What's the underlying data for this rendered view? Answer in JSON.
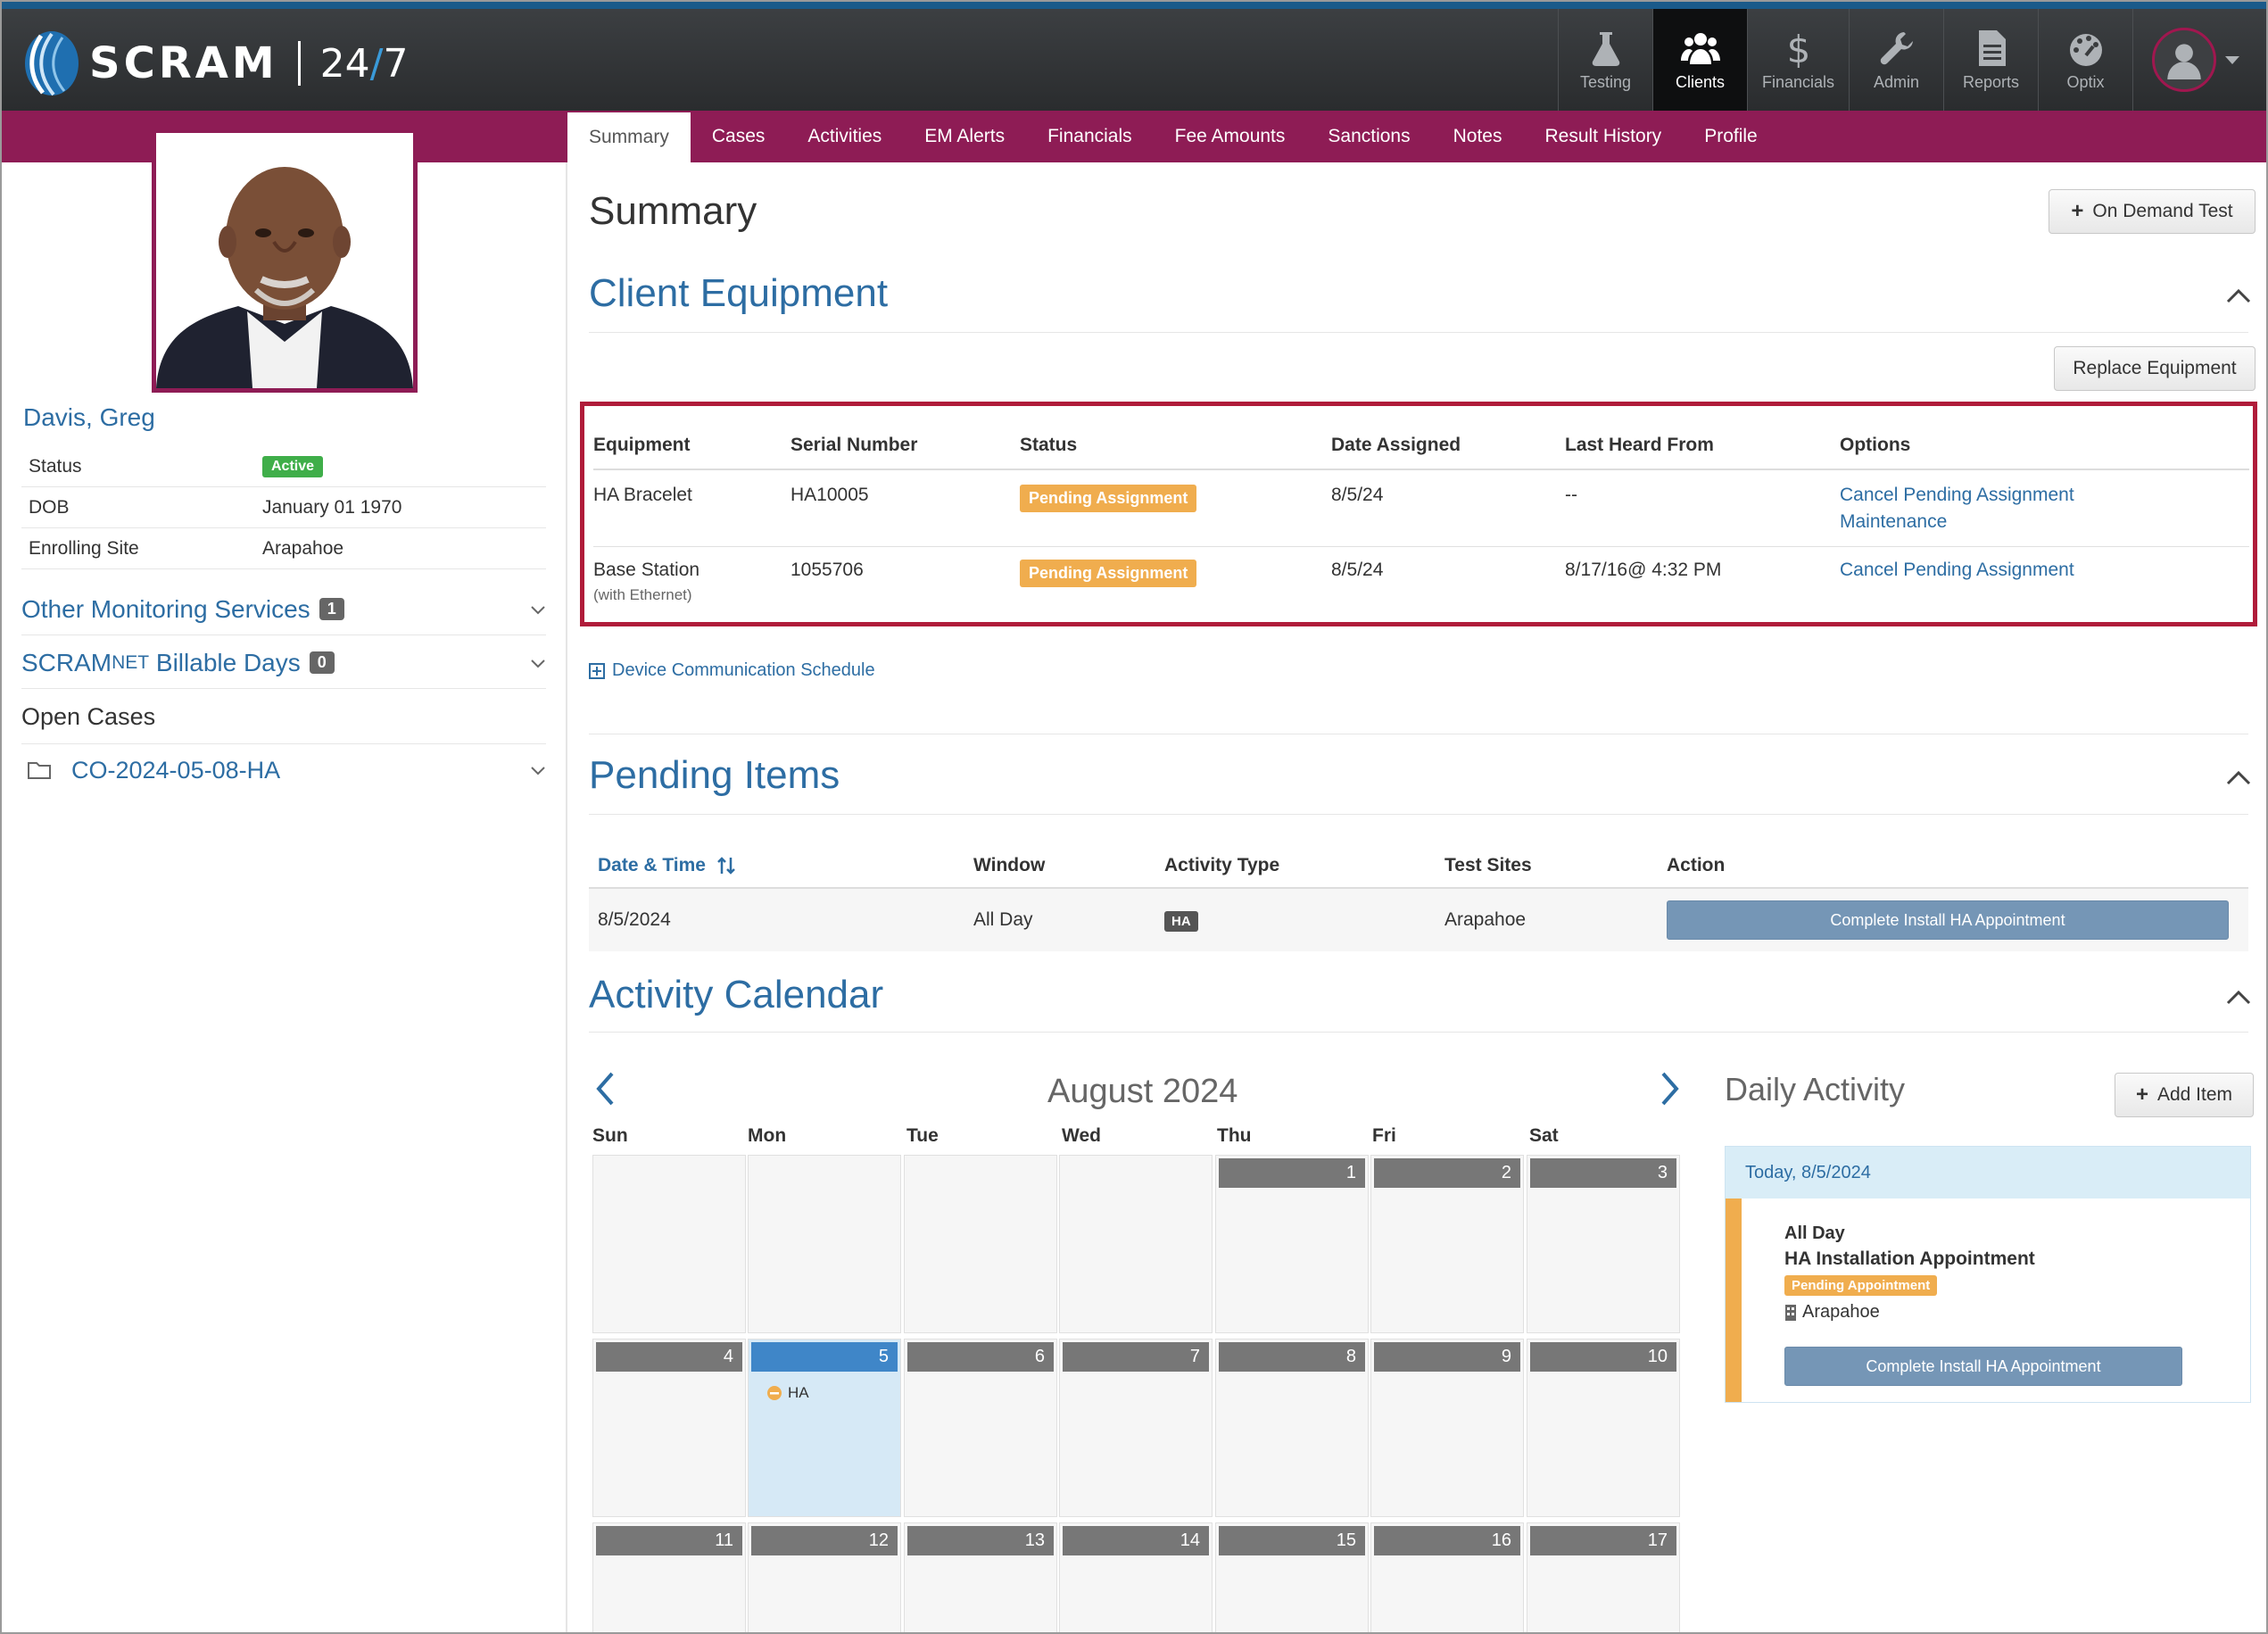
{
  "brand": {
    "name": "SCRAM",
    "suffix_a": "24",
    "suffix_slash": "/",
    "suffix_b": "7"
  },
  "topnav": [
    {
      "id": "testing",
      "label": "Testing",
      "icon": "flask-icon"
    },
    {
      "id": "clients",
      "label": "Clients",
      "icon": "users-icon",
      "active": true
    },
    {
      "id": "financials",
      "label": "Financials",
      "icon": "dollar-icon"
    },
    {
      "id": "admin",
      "label": "Admin",
      "icon": "wrench-icon"
    },
    {
      "id": "reports",
      "label": "Reports",
      "icon": "document-icon"
    },
    {
      "id": "optix",
      "label": "Optix",
      "icon": "gauge-icon"
    }
  ],
  "tabs": [
    "Summary",
    "Cases",
    "Activities",
    "EM Alerts",
    "Financials",
    "Fee Amounts",
    "Sanctions",
    "Notes",
    "Result History",
    "Profile"
  ],
  "client": {
    "name": "Davis, Greg",
    "info": [
      {
        "label": "Status",
        "value": "Active"
      },
      {
        "label": "DOB",
        "value": "January 01 1970"
      },
      {
        "label": "Enrolling Site",
        "value": "Arapahoe"
      }
    ],
    "other_services": {
      "label": "Other Monitoring Services",
      "count": "1"
    },
    "billable": {
      "label_a": "SCRAM",
      "label_b": "NET",
      "label_c": " Billable Days",
      "count": "0"
    },
    "open_cases_label": "Open Cases",
    "case_id": "CO-2024-05-08-HA"
  },
  "summary": {
    "title": "Summary",
    "on_demand_label": "On Demand Test"
  },
  "equipment": {
    "title": "Client Equipment",
    "replace_label": "Replace Equipment",
    "columns": [
      "Equipment",
      "Serial Number",
      "Status",
      "Date Assigned",
      "Last Heard From",
      "Options"
    ],
    "rows": [
      {
        "equipment": "HA Bracelet",
        "sub": "",
        "serial": "HA10005",
        "status": "Pending Assignment",
        "date": "8/5/24",
        "last_heard": "--",
        "options": [
          "Cancel Pending Assignment",
          "Maintenance"
        ]
      },
      {
        "equipment": "Base Station",
        "sub": "(with Ethernet)",
        "serial": "1055706",
        "status": "Pending Assignment",
        "date": "8/5/24",
        "last_heard": "8/17/16@ 4:32 PM",
        "options": [
          "Cancel Pending Assignment"
        ]
      }
    ],
    "schedule_link": "Device Communication Schedule"
  },
  "pending": {
    "title": "Pending Items",
    "columns": [
      "Date & Time",
      "Window",
      "Activity Type",
      "Test Sites",
      "Action"
    ],
    "row": {
      "date": "8/5/2024",
      "window": "All Day",
      "type": "HA",
      "site": "Arapahoe",
      "action": "Complete Install HA Appointment"
    }
  },
  "calendar": {
    "title": "Activity Calendar",
    "month": "August 2024",
    "dow": [
      "Sun",
      "Mon",
      "Tue",
      "Wed",
      "Thu",
      "Fri",
      "Sat"
    ],
    "weeks": [
      [
        "",
        "",
        "",
        "",
        "1",
        "2",
        "3"
      ],
      [
        "4",
        "5",
        "6",
        "7",
        "8",
        "9",
        "10"
      ],
      [
        "11",
        "12",
        "13",
        "14",
        "15",
        "16",
        "17"
      ]
    ],
    "today_event": "HA"
  },
  "daily": {
    "title": "Daily Activity",
    "add_label": "Add Item",
    "today": "Today, 8/5/2024",
    "window": "All Day",
    "event": "HA Installation Appointment",
    "status": "Pending Appointment",
    "site": "Arapahoe",
    "action": "Complete Install HA Appointment"
  },
  "colors": {
    "accent": "#8e1c55",
    "link": "#2d6da3",
    "pending": "#f0ad4e",
    "highlight": "#b01c3a"
  }
}
